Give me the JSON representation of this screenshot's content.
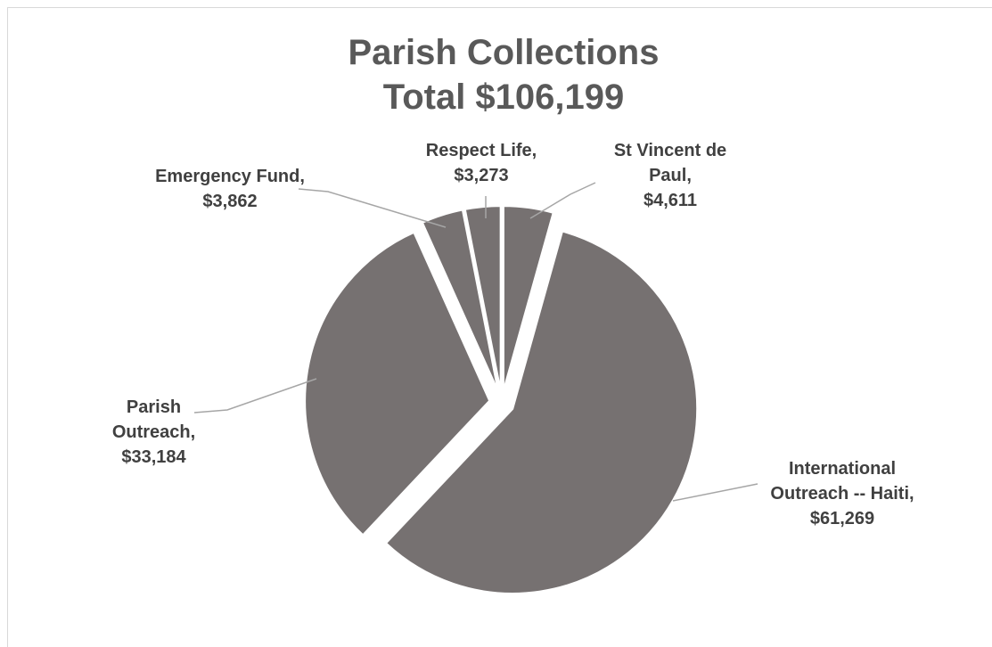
{
  "chart_data": {
    "type": "pie",
    "title": "Parish Collections",
    "subtitle": "Total $106,199",
    "categories": [
      "St Vincent de Paul,",
      "International Outreach -- Haiti,",
      "Parish Outreach,",
      "Emergency Fund,",
      "Respect Life,"
    ],
    "values": [
      4611,
      61269,
      33184,
      3862,
      3273
    ],
    "value_labels": [
      "$4,611",
      "$61,269",
      "$33,184",
      "$3,862",
      "$3,273"
    ],
    "color": "#767171"
  }
}
